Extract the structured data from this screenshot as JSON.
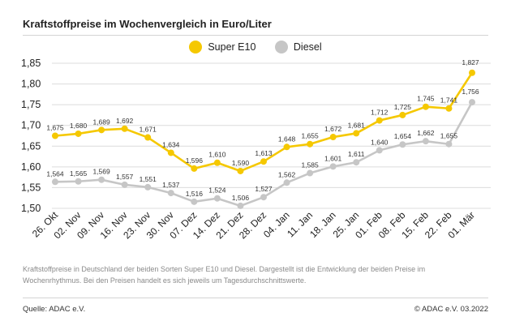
{
  "title": "Kraftstoffpreise im Wochenvergleich in Euro/Liter",
  "note": "Kraftstoffpreise in Deutschland der beiden Sorten Super E10 und Diesel. Dargestellt ist die Entwicklung der beiden Preise im Wochenrhythmus. Bei den Preisen handelt es sich jeweils um Tagesdurchschnittswerte.",
  "source": "Quelle: ADAC e.V.",
  "copyright": "© ADAC e.V. 03.2022",
  "chart_data": {
    "type": "line",
    "categories": [
      "26. Okt",
      "02. Nov",
      "09. Nov",
      "16. Nov",
      "23. Nov",
      "30. Nov",
      "07. Dez",
      "14. Dez",
      "21. Dez",
      "28. Dez",
      "04. Jan",
      "11. Jan",
      "18. Jan",
      "25. Jan",
      "01. Feb",
      "08. Feb",
      "15. Feb",
      "22. Feb",
      "01. Mär"
    ],
    "series": [
      {
        "name": "Super E10",
        "color": "#f5c800",
        "values": [
          1.675,
          1.68,
          1.689,
          1.692,
          1.671,
          1.634,
          1.596,
          1.61,
          1.59,
          1.613,
          1.648,
          1.655,
          1.672,
          1.681,
          1.712,
          1.725,
          1.745,
          1.741,
          1.827
        ],
        "labels": [
          "1,675",
          "1,680",
          "1,689",
          "1,692",
          "1,671",
          "1,634",
          "1,596",
          "1,610",
          "1,590",
          "1,613",
          "1,648",
          "1,655",
          "1,672",
          "1,681",
          "1,712",
          "1,725",
          "1,745",
          "1,741",
          "1,827"
        ]
      },
      {
        "name": "Diesel",
        "color": "#c6c6c6",
        "values": [
          1.564,
          1.565,
          1.569,
          1.557,
          1.551,
          1.537,
          1.516,
          1.524,
          1.506,
          1.527,
          1.562,
          1.585,
          1.601,
          1.611,
          1.64,
          1.654,
          1.662,
          1.655,
          1.756
        ],
        "labels": [
          "1,564",
          "1,565",
          "1,569",
          "1,557",
          "1,551",
          "1,537",
          "1,516",
          "1,524",
          "1,506",
          "1,527",
          "1,562",
          "1,585",
          "1,601",
          "1,611",
          "1,640",
          "1,654",
          "1,662",
          "1,655",
          "1,756"
        ]
      }
    ],
    "yticks": [
      1.5,
      1.55,
      1.6,
      1.65,
      1.7,
      1.75,
      1.8,
      1.85
    ],
    "ytick_labels": [
      "1,50",
      "1,55",
      "1,60",
      "1,65",
      "1,70",
      "1,75",
      "1,80",
      "1,85"
    ],
    "ylim": [
      1.5,
      1.85
    ],
    "grid": true,
    "legend": "top-center"
  }
}
